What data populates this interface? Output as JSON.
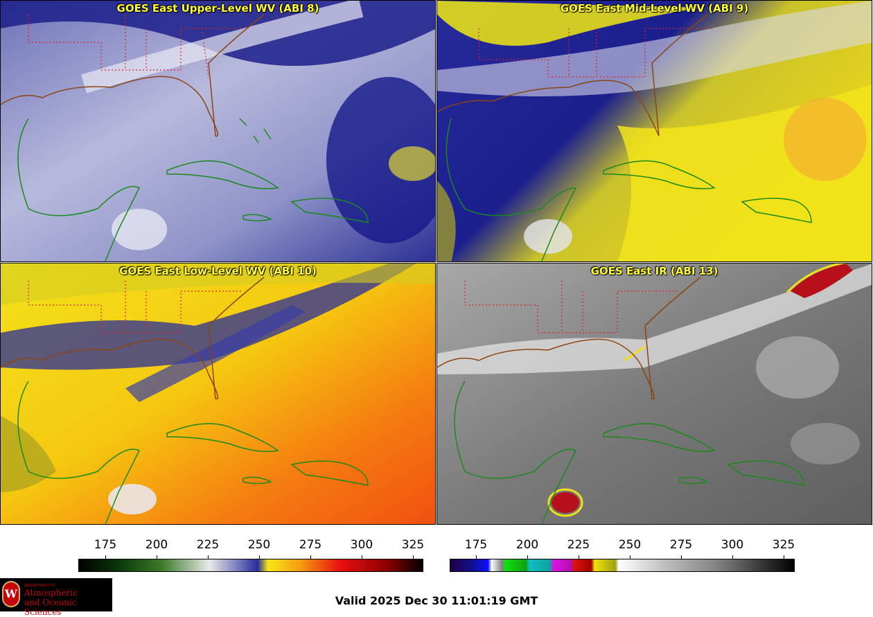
{
  "panels": [
    {
      "title": "GOES East Upper-Level WV (ABI 8)",
      "palette": "wv-upper"
    },
    {
      "title": "GOES East Mid-Level WV (ABI 9)",
      "palette": "wv-mid"
    },
    {
      "title": "GOES East Low-Level WV (ABI 10)",
      "palette": "wv-low"
    },
    {
      "title": "GOES East IR (ABI 13)",
      "palette": "ir"
    }
  ],
  "colorbars": {
    "wv": {
      "ticks": [
        "175",
        "200",
        "225",
        "250",
        "275",
        "300",
        "325"
      ]
    },
    "ir": {
      "ticks": [
        "175",
        "200",
        "225",
        "250",
        "275",
        "300",
        "325"
      ]
    }
  },
  "footer": {
    "valid_text": "Valid 2025 Dec 30 11:01:19 GMT"
  },
  "logo": {
    "seal_letter": "W",
    "dept_line": "Department of",
    "line1": "Atmospheric",
    "line2": "and Oceanic Sciences"
  },
  "colors": {
    "title_text": "#ffff33",
    "state_borders": "#e02020",
    "coastlines_us": "#8b4513",
    "coastlines_carib": "#1a8a1a"
  }
}
